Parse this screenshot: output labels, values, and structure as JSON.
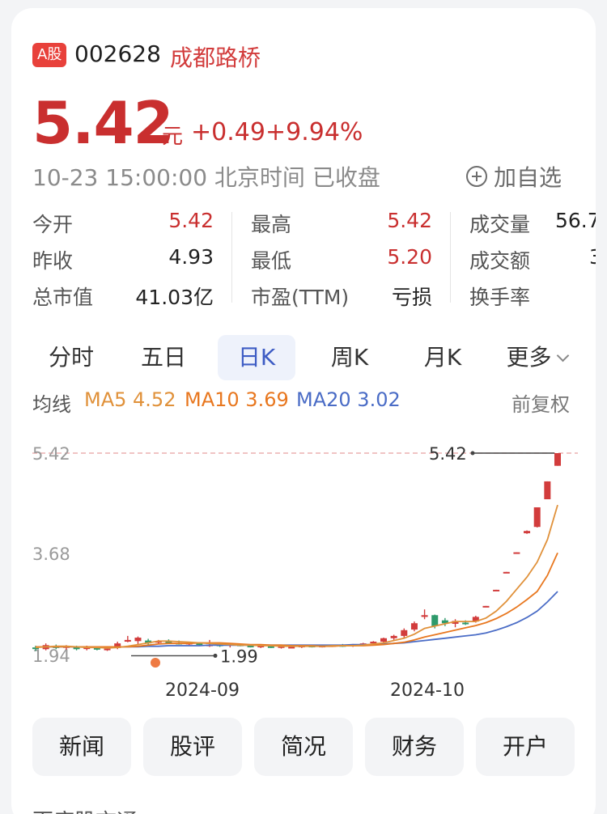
{
  "stock": {
    "market_badge": "A股",
    "code": "002628",
    "name": "成都路桥",
    "price": "5.42",
    "currency_unit": "元",
    "change": "+0.49",
    "change_pct": "+9.94%",
    "time": "10-23 15:00:00 北京时间 已收盘",
    "add_watchlist": "加自选"
  },
  "quote": {
    "open_label": "今开",
    "open": "5.42",
    "prev_close_label": "昨收",
    "prev_close": "4.93",
    "market_cap_label": "总市值",
    "market_cap": "41.03亿",
    "high_label": "最高",
    "high": "5.42",
    "low_label": "最低",
    "low": "5.20",
    "pe_label": "市盈(TTM)",
    "pe": "亏损",
    "volume_label": "成交量",
    "volume": "56.7",
    "amount_label": "成交额",
    "amount": "3",
    "turnover_label": "换手率"
  },
  "tabs": [
    "分时",
    "五日",
    "日K",
    "周K",
    "月K",
    "更多"
  ],
  "active_tab": "日K",
  "indicators": {
    "label": "均线",
    "ma5": "MA5 4.52",
    "ma10": "MA10 3.69",
    "ma20": "MA20 3.02",
    "adjust": "前复权",
    "colors": {
      "ma5": "#e0913a",
      "ma10": "#e8771f",
      "ma20": "#4a6cc6",
      "up": "#d23c3c",
      "down": "#2e9a6b"
    }
  },
  "chart_data": {
    "type": "candlestick",
    "y_axis_labels": [
      "5.42",
      "3.68",
      "1.94"
    ],
    "x_axis_labels": [
      "2024-09",
      "2024-10"
    ],
    "max_label": "5.42",
    "min_label": "1.99",
    "ylim": [
      1.94,
      5.42
    ],
    "candles": [
      {
        "o": 2.05,
        "h": 2.08,
        "l": 1.99,
        "c": 2.03
      },
      {
        "o": 2.02,
        "h": 2.12,
        "l": 2.0,
        "c": 2.09
      },
      {
        "o": 2.07,
        "h": 2.1,
        "l": 2.02,
        "c": 2.04
      },
      {
        "o": 2.05,
        "h": 2.09,
        "l": 2.01,
        "c": 2.07
      },
      {
        "o": 2.06,
        "h": 2.08,
        "l": 2.0,
        "c": 2.02
      },
      {
        "o": 2.03,
        "h": 2.08,
        "l": 2.0,
        "c": 2.05
      },
      {
        "o": 2.04,
        "h": 2.07,
        "l": 2.0,
        "c": 2.02
      },
      {
        "o": 2.02,
        "h": 2.05,
        "l": 1.99,
        "c": 2.03
      },
      {
        "o": 2.04,
        "h": 2.15,
        "l": 2.02,
        "c": 2.12
      },
      {
        "o": 2.15,
        "h": 2.25,
        "l": 2.14,
        "c": 2.18
      },
      {
        "o": 2.16,
        "h": 2.24,
        "l": 2.1,
        "c": 2.22
      },
      {
        "o": 2.17,
        "h": 2.2,
        "l": 2.1,
        "c": 2.12
      },
      {
        "o": 2.14,
        "h": 2.18,
        "l": 2.11,
        "c": 2.16
      },
      {
        "o": 2.15,
        "h": 2.19,
        "l": 2.12,
        "c": 2.13
      },
      {
        "o": 2.13,
        "h": 2.17,
        "l": 2.1,
        "c": 2.11
      },
      {
        "o": 2.12,
        "h": 2.15,
        "l": 2.09,
        "c": 2.13
      },
      {
        "o": 2.12,
        "h": 2.14,
        "l": 2.08,
        "c": 2.1
      },
      {
        "o": 2.1,
        "h": 2.18,
        "l": 2.06,
        "c": 2.1
      },
      {
        "o": 2.1,
        "h": 2.12,
        "l": 2.06,
        "c": 2.08
      },
      {
        "o": 2.09,
        "h": 2.12,
        "l": 2.05,
        "c": 2.11
      },
      {
        "o": 2.1,
        "h": 2.12,
        "l": 2.07,
        "c": 2.08
      },
      {
        "o": 2.08,
        "h": 2.1,
        "l": 2.05,
        "c": 2.07
      },
      {
        "o": 2.06,
        "h": 2.09,
        "l": 2.04,
        "c": 2.08
      },
      {
        "o": 2.07,
        "h": 2.09,
        "l": 2.04,
        "c": 2.05
      },
      {
        "o": 2.05,
        "h": 2.08,
        "l": 2.03,
        "c": 2.07
      },
      {
        "o": 2.06,
        "h": 2.08,
        "l": 2.04,
        "c": 2.06
      },
      {
        "o": 2.06,
        "h": 2.09,
        "l": 2.04,
        "c": 2.08
      },
      {
        "o": 2.08,
        "h": 2.1,
        "l": 2.05,
        "c": 2.07
      },
      {
        "o": 2.07,
        "h": 2.09,
        "l": 2.05,
        "c": 2.08
      },
      {
        "o": 2.08,
        "h": 2.1,
        "l": 2.06,
        "c": 2.09
      },
      {
        "o": 2.09,
        "h": 2.11,
        "l": 2.06,
        "c": 2.08
      },
      {
        "o": 2.08,
        "h": 2.11,
        "l": 2.06,
        "c": 2.1
      },
      {
        "o": 2.1,
        "h": 2.13,
        "l": 2.08,
        "c": 2.12
      },
      {
        "o": 2.12,
        "h": 2.16,
        "l": 2.1,
        "c": 2.15
      },
      {
        "o": 2.15,
        "h": 2.22,
        "l": 2.13,
        "c": 2.21
      },
      {
        "o": 2.21,
        "h": 2.27,
        "l": 2.18,
        "c": 2.25
      },
      {
        "o": 2.25,
        "h": 2.38,
        "l": 2.22,
        "c": 2.35
      },
      {
        "o": 2.36,
        "h": 2.5,
        "l": 2.33,
        "c": 2.47
      },
      {
        "o": 2.58,
        "h": 2.71,
        "l": 2.54,
        "c": 2.61
      },
      {
        "o": 2.61,
        "h": 2.62,
        "l": 2.38,
        "c": 2.42
      },
      {
        "o": 2.52,
        "h": 2.56,
        "l": 2.42,
        "c": 2.47
      },
      {
        "o": 2.46,
        "h": 2.54,
        "l": 2.4,
        "c": 2.51
      },
      {
        "o": 2.48,
        "h": 2.52,
        "l": 2.44,
        "c": 2.46
      },
      {
        "o": 2.5,
        "h": 2.6,
        "l": 2.48,
        "c": 2.58
      },
      {
        "o": 2.75,
        "h": 2.77,
        "l": 2.75,
        "c": 2.77
      },
      {
        "o": 3.04,
        "h": 3.05,
        "l": 3.04,
        "c": 3.05
      },
      {
        "o": 3.34,
        "h": 3.36,
        "l": 3.34,
        "c": 3.36
      },
      {
        "o": 3.69,
        "h": 3.7,
        "l": 3.69,
        "c": 3.7
      },
      {
        "o": 4.03,
        "h": 4.08,
        "l": 4.02,
        "c": 4.07
      },
      {
        "o": 4.14,
        "h": 4.48,
        "l": 4.13,
        "c": 4.48
      },
      {
        "o": 4.62,
        "h": 4.93,
        "l": 4.62,
        "c": 4.93
      },
      {
        "o": 5.2,
        "h": 5.42,
        "l": 5.2,
        "c": 5.42
      }
    ],
    "ma5": [
      2.05,
      2.06,
      2.07,
      2.07,
      2.06,
      2.05,
      2.05,
      2.04,
      2.05,
      2.07,
      2.1,
      2.13,
      2.16,
      2.16,
      2.15,
      2.14,
      2.13,
      2.12,
      2.11,
      2.1,
      2.09,
      2.09,
      2.08,
      2.08,
      2.07,
      2.07,
      2.07,
      2.07,
      2.07,
      2.08,
      2.08,
      2.08,
      2.09,
      2.11,
      2.13,
      2.17,
      2.21,
      2.28,
      2.38,
      2.42,
      2.46,
      2.5,
      2.5,
      2.5,
      2.56,
      2.68,
      2.85,
      3.06,
      3.27,
      3.53,
      3.92,
      4.52
    ],
    "ma10": [
      2.06,
      2.06,
      2.06,
      2.06,
      2.06,
      2.06,
      2.06,
      2.06,
      2.06,
      2.06,
      2.07,
      2.09,
      2.11,
      2.12,
      2.12,
      2.12,
      2.13,
      2.13,
      2.13,
      2.12,
      2.11,
      2.1,
      2.1,
      2.09,
      2.09,
      2.08,
      2.08,
      2.08,
      2.07,
      2.07,
      2.08,
      2.08,
      2.08,
      2.09,
      2.1,
      2.12,
      2.14,
      2.18,
      2.23,
      2.27,
      2.31,
      2.35,
      2.39,
      2.43,
      2.48,
      2.55,
      2.64,
      2.75,
      2.88,
      3.02,
      3.3,
      3.69
    ],
    "ma20": [
      2.06,
      2.06,
      2.06,
      2.06,
      2.06,
      2.06,
      2.06,
      2.06,
      2.06,
      2.06,
      2.06,
      2.07,
      2.07,
      2.08,
      2.08,
      2.08,
      2.08,
      2.09,
      2.09,
      2.09,
      2.09,
      2.09,
      2.09,
      2.09,
      2.09,
      2.09,
      2.09,
      2.09,
      2.09,
      2.09,
      2.09,
      2.1,
      2.1,
      2.1,
      2.11,
      2.12,
      2.13,
      2.15,
      2.17,
      2.19,
      2.21,
      2.23,
      2.25,
      2.27,
      2.3,
      2.35,
      2.41,
      2.48,
      2.57,
      2.68,
      2.84,
      3.02
    ]
  },
  "footer_buttons": [
    "新闻",
    "股评",
    "简况",
    "财务",
    "开户"
  ],
  "bottom_link": "百度股市通 ›"
}
